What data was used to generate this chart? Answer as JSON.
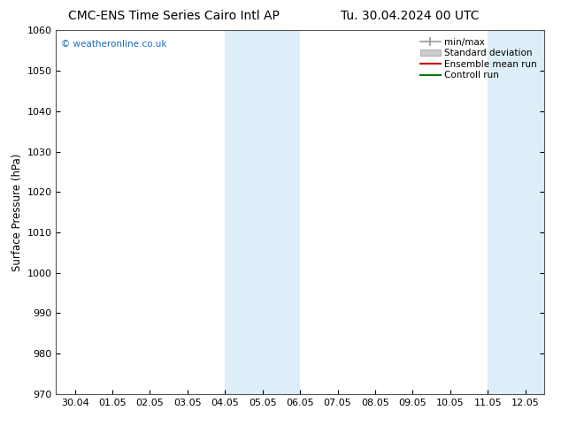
{
  "title_left": "CMC-ENS Time Series Cairo Intl AP",
  "title_right": "Tu. 30.04.2024 00 UTC",
  "ylabel": "Surface Pressure (hPa)",
  "ylim": [
    970,
    1060
  ],
  "yticks": [
    970,
    980,
    990,
    1000,
    1010,
    1020,
    1030,
    1040,
    1050,
    1060
  ],
  "xtick_labels": [
    "30.04",
    "01.05",
    "02.05",
    "03.05",
    "04.05",
    "05.05",
    "06.05",
    "07.05",
    "08.05",
    "09.05",
    "10.05",
    "11.05",
    "12.05"
  ],
  "xtick_positions": [
    0,
    1,
    2,
    3,
    4,
    5,
    6,
    7,
    8,
    9,
    10,
    11,
    12
  ],
  "xlim": [
    -0.5,
    12.5
  ],
  "shaded_bands": [
    {
      "xmin": 4.0,
      "xmax": 6.0,
      "color": "#ddeef9"
    },
    {
      "xmin": 11.0,
      "xmax": 12.5,
      "color": "#ddeef9"
    }
  ],
  "copyright_text": "© weatheronline.co.uk",
  "copyright_color": "#1a6abf",
  "background_color": "#ffffff",
  "plot_bg_color": "#ffffff",
  "legend_items": [
    {
      "label": "min/max"
    },
    {
      "label": "Standard deviation"
    },
    {
      "label": "Ensemble mean run"
    },
    {
      "label": "Controll run"
    }
  ],
  "minmax_color": "#999999",
  "std_color": "#cccccc",
  "ens_color": "#cc0000",
  "ctrl_color": "#007700",
  "title_fontsize": 10,
  "axis_fontsize": 8.5,
  "tick_fontsize": 8,
  "legend_fontsize": 7.5
}
